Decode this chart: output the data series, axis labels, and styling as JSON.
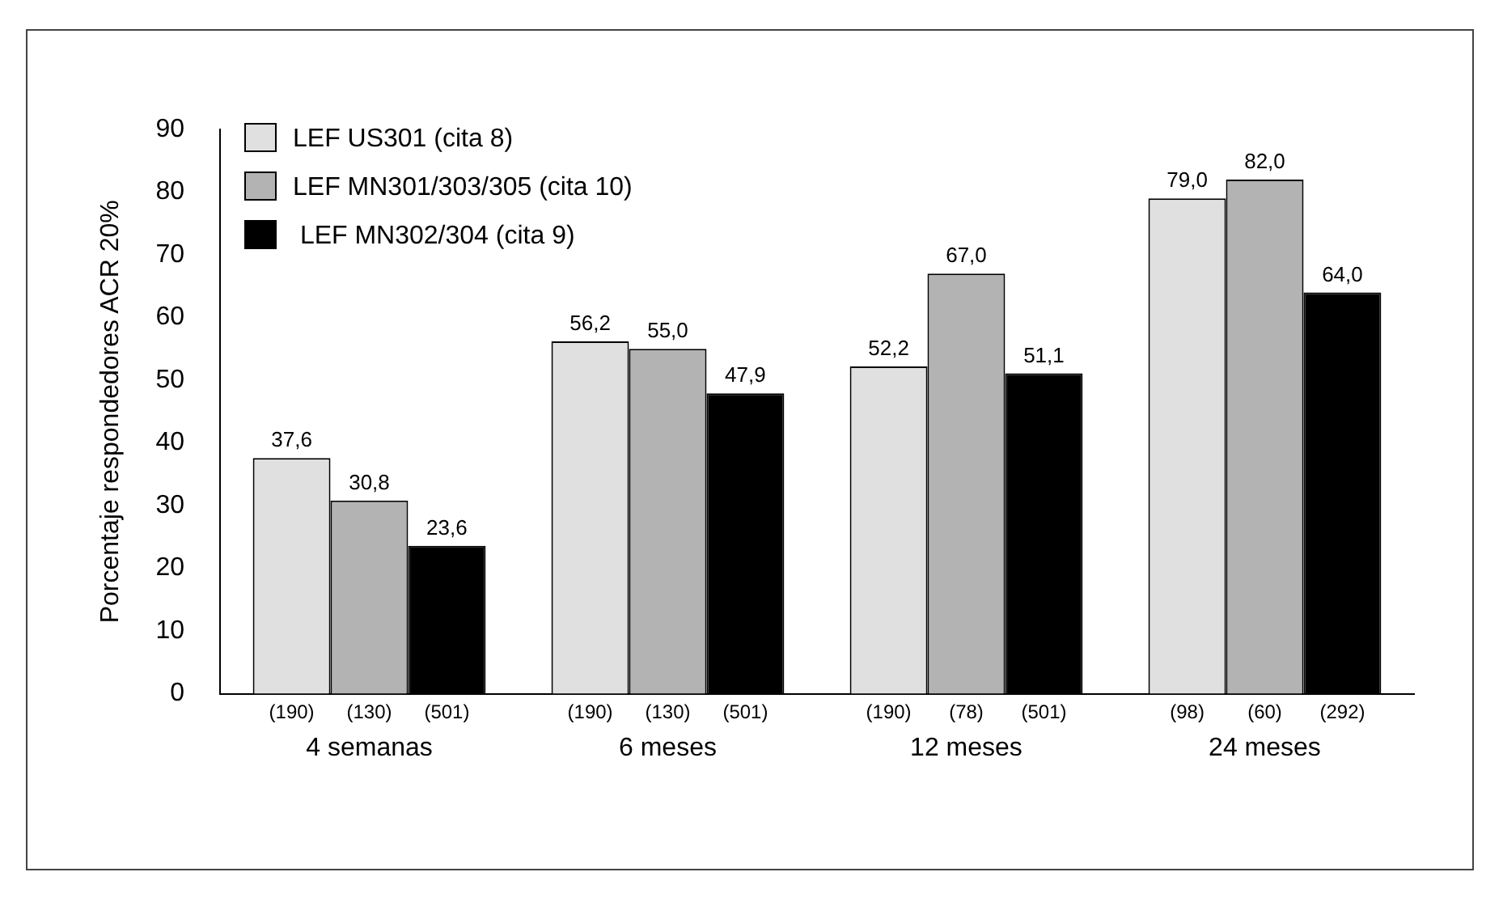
{
  "chart_data": {
    "type": "bar",
    "ylabel": "Porcentaje respondedores ACR 20%",
    "categories": [
      "4 semanas",
      "6 meses",
      "12 meses",
      "24 meses"
    ],
    "series": [
      {
        "name": "LEF US301 (cita 8)",
        "color": "#e0e0e0",
        "values": [
          37.6,
          56.2,
          52.2,
          79.0
        ],
        "value_labels": [
          "37,6",
          "56,2",
          "52,2",
          "79,0"
        ]
      },
      {
        "name": "LEF MN301/303/305 (cita 10)",
        "color": "#b3b3b3",
        "values": [
          30.8,
          55.0,
          67.0,
          82.0
        ],
        "value_labels": [
          "30,8",
          "55,0",
          "67,0",
          "82,0"
        ]
      },
      {
        "name": " LEF MN302/304 (cita 9)",
        "color": "#000000",
        "values": [
          23.6,
          47.9,
          51.1,
          64.0
        ],
        "value_labels": [
          "23,6",
          "47,9",
          "51,1",
          "64,0"
        ]
      }
    ],
    "annotations": [
      "(190)",
      "(130)",
      "(501)",
      "(190)",
      "(130)",
      "(501)",
      "(190)",
      "(78)",
      "(501)",
      "(98)",
      "(60)",
      "(292)"
    ],
    "ylim": [
      0,
      90
    ],
    "yticks": [
      0,
      10,
      20,
      30,
      40,
      50,
      60,
      70,
      80,
      90
    ],
    "grid": false,
    "legend": "top left"
  }
}
